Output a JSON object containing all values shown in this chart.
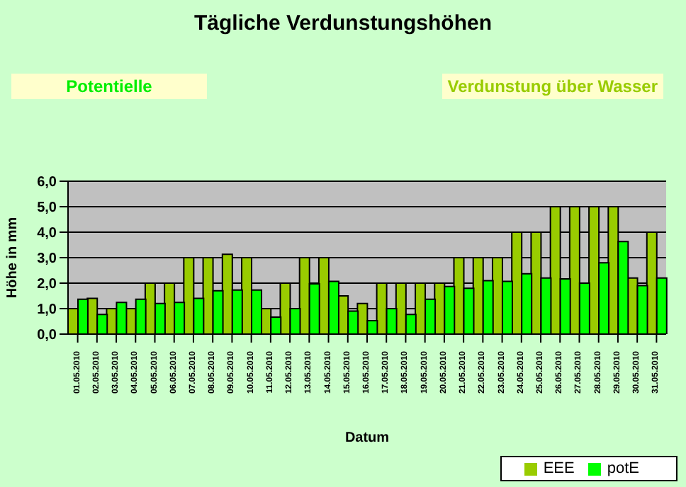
{
  "chart_data": {
    "type": "bar",
    "title": "Tägliche Verdunstungshöhen",
    "annotations": [
      "Potentielle",
      "Verdunstung über Wasser"
    ],
    "xlabel": "Datum",
    "ylabel": "Höhe in mm",
    "categories": [
      "01.05.2010",
      "02.05.2010",
      "03.05.2010",
      "04.05.2010",
      "05.05.2010",
      "06.05.2010",
      "07.05.2010",
      "08.05.2010",
      "09.05.2010",
      "10.05.2010",
      "11.05.2010",
      "12.05.2010",
      "13.05.2010",
      "14.05.2010",
      "15.05.2010",
      "16.05.2010",
      "17.05.2010",
      "18.05.2010",
      "19.05.2010",
      "20.05.2010",
      "21.05.2010",
      "22.05.2010",
      "23.05.2010",
      "24.05.2010",
      "25.05.2010",
      "26.05.2010",
      "27.05.2010",
      "28.05.2010",
      "29.05.2010",
      "30.05.2010",
      "31.05.2010"
    ],
    "series": [
      {
        "name": "EEE",
        "color": "#99cc00",
        "values": [
          1.0,
          1.4,
          1.0,
          1.0,
          2.0,
          2.0,
          3.0,
          3.0,
          3.13,
          3.0,
          1.0,
          2.0,
          3.0,
          3.0,
          1.5,
          1.2,
          2.0,
          2.0,
          2.0,
          2.0,
          3.0,
          3.0,
          3.0,
          4.0,
          4.0,
          5.0,
          5.0,
          5.0,
          5.0,
          2.2,
          4.0
        ]
      },
      {
        "name": "potE",
        "color": "#00ff00",
        "values": [
          1.37,
          0.77,
          1.24,
          1.37,
          1.2,
          1.24,
          1.4,
          1.7,
          1.73,
          1.73,
          0.67,
          1.0,
          1.97,
          2.07,
          0.9,
          0.53,
          1.0,
          0.77,
          1.37,
          1.87,
          1.8,
          2.1,
          2.07,
          2.37,
          2.2,
          2.17,
          2.0,
          2.8,
          3.63,
          1.9,
          2.2
        ]
      }
    ],
    "ylim": [
      0,
      6
    ],
    "yticks": [
      {
        "value": 0,
        "label": "0,0"
      },
      {
        "value": 1,
        "label": "1,0"
      },
      {
        "value": 2,
        "label": "2,0"
      },
      {
        "value": 3,
        "label": "3,0"
      },
      {
        "value": 4,
        "label": "4,0"
      },
      {
        "value": 5,
        "label": "5,0"
      },
      {
        "value": 6,
        "label": "6,0"
      }
    ],
    "grid": "y",
    "legend": "bottom right"
  }
}
